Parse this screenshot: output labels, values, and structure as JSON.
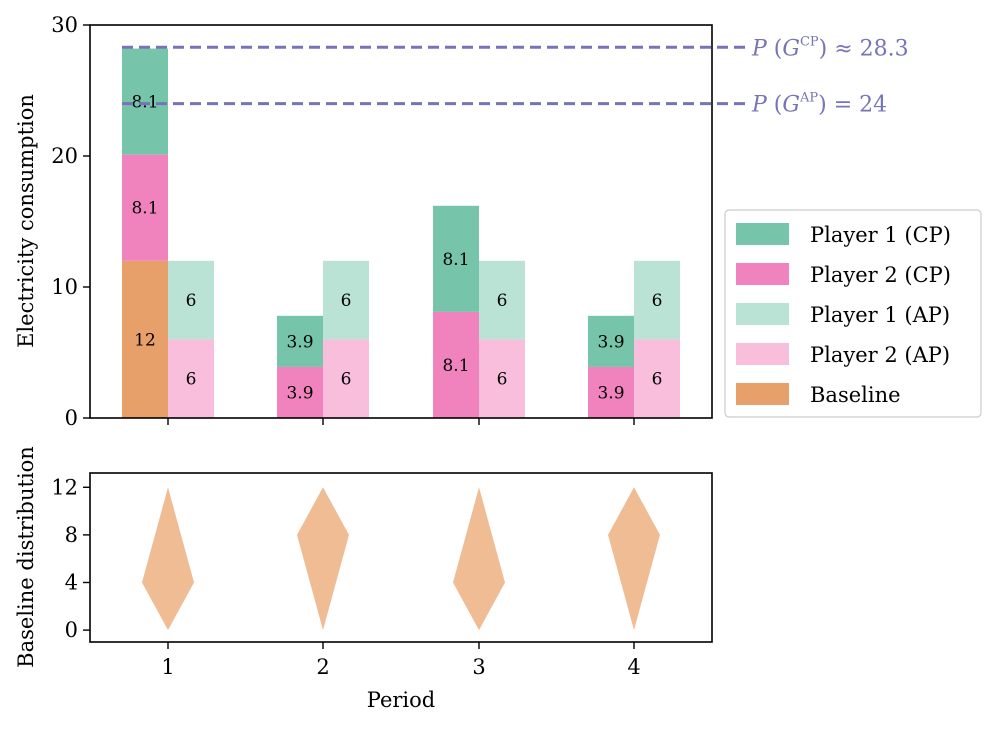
{
  "chart_data": [
    {
      "type": "bar",
      "subtype": "stacked-grouped",
      "title": "",
      "xlabel": "",
      "ylabel": "Electricity consumption",
      "ylim": [
        0,
        30
      ],
      "yticks": [
        0,
        10,
        20,
        30
      ],
      "categories": [
        "1",
        "2",
        "3",
        "4"
      ],
      "groups": [
        {
          "name": "CP",
          "stacks": [
            {
              "name": "Baseline",
              "color": "#e8a06a",
              "values": [
                12,
                0,
                0,
                0
              ]
            },
            {
              "name": "Player 2 (CP)",
              "color": "#f083bd",
              "values": [
                8.1,
                3.9,
                8.1,
                3.9
              ]
            },
            {
              "name": "Player 1 (CP)",
              "color": "#76c5aa",
              "values": [
                8.1,
                3.9,
                8.1,
                3.9
              ]
            }
          ]
        },
        {
          "name": "AP",
          "stacks": [
            {
              "name": "Player 2 (AP)",
              "color": "#f8bedc",
              "values": [
                6,
                6,
                6,
                6
              ]
            },
            {
              "name": "Player 1 (AP)",
              "color": "#bae3d5",
              "values": [
                6,
                6,
                6,
                6
              ]
            }
          ]
        }
      ],
      "bar_labels": [
        {
          "group": "CP",
          "stack": "Baseline",
          "period": "1",
          "text": "12"
        },
        {
          "group": "CP",
          "stack": "Player 2 (CP)",
          "period": "1",
          "text": "8.1"
        },
        {
          "group": "CP",
          "stack": "Player 1 (CP)",
          "period": "1",
          "text": "8.1"
        },
        {
          "group": "AP",
          "stack": "Player 2 (AP)",
          "period": "1",
          "text": "6"
        },
        {
          "group": "AP",
          "stack": "Player 1 (AP)",
          "period": "1",
          "text": "6"
        },
        {
          "group": "CP",
          "stack": "Player 2 (CP)",
          "period": "2",
          "text": "3.9"
        },
        {
          "group": "CP",
          "stack": "Player 1 (CP)",
          "period": "2",
          "text": "3.9"
        },
        {
          "group": "AP",
          "stack": "Player 2 (AP)",
          "period": "2",
          "text": "6"
        },
        {
          "group": "AP",
          "stack": "Player 1 (AP)",
          "period": "2",
          "text": "6"
        },
        {
          "group": "CP",
          "stack": "Player 2 (CP)",
          "period": "3",
          "text": "8.1"
        },
        {
          "group": "CP",
          "stack": "Player 1 (CP)",
          "period": "3",
          "text": "8.1"
        },
        {
          "group": "AP",
          "stack": "Player 2 (AP)",
          "period": "3",
          "text": "6"
        },
        {
          "group": "AP",
          "stack": "Player 1 (AP)",
          "period": "3",
          "text": "6"
        },
        {
          "group": "CP",
          "stack": "Player 2 (CP)",
          "period": "4",
          "text": "3.9"
        },
        {
          "group": "CP",
          "stack": "Player 1 (CP)",
          "period": "4",
          "text": "3.9"
        },
        {
          "group": "AP",
          "stack": "Player 2 (AP)",
          "period": "4",
          "text": "6"
        },
        {
          "group": "AP",
          "stack": "Player 1 (AP)",
          "period": "4",
          "text": "6"
        }
      ],
      "hlines": [
        {
          "name": "potential-cp",
          "y": 28.3,
          "color": "#7773b8",
          "style": "dashed",
          "label_func": "P",
          "label_set": "G",
          "label_sup": "CP",
          "label_rel": "≈",
          "label_value": "28.3"
        },
        {
          "name": "potential-ap",
          "y": 24,
          "color": "#7773b8",
          "style": "dashed",
          "label_func": "P",
          "label_set": "G",
          "label_sup": "AP",
          "label_rel": "=",
          "label_value": "24"
        }
      ],
      "legend": {
        "placement": "right, outside",
        "entries": [
          {
            "label": "Player 1 (CP)",
            "color": "#76c5aa"
          },
          {
            "label": "Player 2 (CP)",
            "color": "#f083bd"
          },
          {
            "label": "Player 1 (AP)",
            "color": "#bae3d5"
          },
          {
            "label": "Player 2 (AP)",
            "color": "#f8bedc"
          },
          {
            "label": "Baseline",
            "color": "#e8a06a"
          }
        ]
      }
    },
    {
      "type": "area",
      "subtype": "violin-diamond",
      "title": "",
      "xlabel": "Period",
      "ylabel": "Baseline distribution",
      "ylim": [
        -1,
        13.2
      ],
      "yticks": [
        0,
        4,
        8,
        12
      ],
      "x": [
        "1",
        "2",
        "3",
        "4"
      ],
      "color": "#f0bc94",
      "shapes": [
        {
          "period": "1",
          "min": 0,
          "mode": 4,
          "max": 12
        },
        {
          "period": "2",
          "min": 0,
          "mode": 8,
          "max": 12
        },
        {
          "period": "3",
          "min": 0,
          "mode": 4,
          "max": 12
        },
        {
          "period": "4",
          "min": 0,
          "mode": 8,
          "max": 12
        }
      ]
    }
  ]
}
